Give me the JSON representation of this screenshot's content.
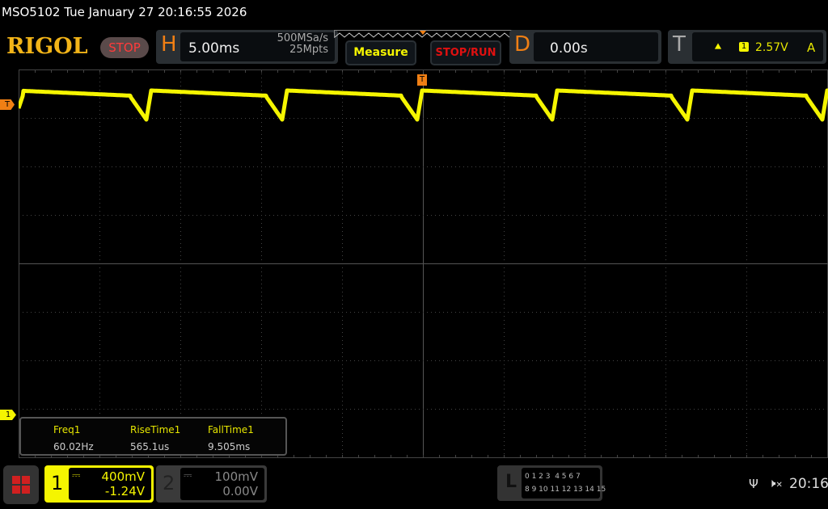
{
  "header": {
    "title": "MSO5102  Tue January 27 20:16:55 2026",
    "logo": "RIGOL",
    "run_state": "STOP"
  },
  "horizontal": {
    "letter": "H",
    "timebase": "5.00ms",
    "sample_rate": "500MSa/s",
    "memory_depth": "25Mpts"
  },
  "buttons": {
    "measure": "Measure",
    "stop_run": "STOP/RUN"
  },
  "delay": {
    "letter": "D",
    "value": "0.00s"
  },
  "trigger": {
    "letter": "T",
    "slope_icon": "rising-edge-icon",
    "source": "1",
    "level": "2.57V",
    "mode": "A",
    "marker": "T"
  },
  "measurements": [
    {
      "label": "Freq1",
      "value": "60.02Hz"
    },
    {
      "label": "RiseTime1",
      "value": "565.1us"
    },
    {
      "label": "FallTime1",
      "value": "9.505ms"
    }
  ],
  "channels": [
    {
      "num": "1",
      "coupling_icon": "dc-coupling-icon",
      "scale": "400mV",
      "offset": "-1.24V",
      "active": true,
      "color": "#f5f500"
    },
    {
      "num": "2",
      "coupling_icon": "dc-coupling-icon",
      "scale": "100mV",
      "offset": "0.00V",
      "active": false,
      "color": "#888888"
    }
  ],
  "logic": {
    "letter": "L",
    "row1": "0 1 2 3  4 5 6 7",
    "row2": "8 9 10 11 12 13 14 15"
  },
  "status": {
    "usb_icon": "usb-icon",
    "speaker_icon": "speaker-muted-icon",
    "time": "20:16"
  },
  "colors": {
    "trace": "#f5f500",
    "accent": "#f07f14",
    "grid": "#555555"
  }
}
